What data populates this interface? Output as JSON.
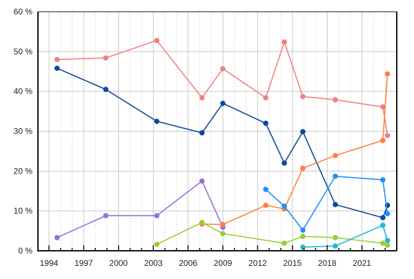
{
  "chart_data": {
    "type": "line",
    "title": "",
    "xlabel": "",
    "ylabel": "",
    "xlim": [
      1993.05,
      2024.0
    ],
    "ylim": [
      0,
      60
    ],
    "x_ticks": [
      1994,
      1997,
      2000,
      2003,
      2006,
      2009,
      2012,
      2015,
      2018,
      2021
    ],
    "x_tick_labels": [
      "1994",
      "1997",
      "2000",
      "2003",
      "2006",
      "2009",
      "2012",
      "2015",
      "2018",
      "2021"
    ],
    "y_ticks": [
      0,
      10,
      20,
      30,
      40,
      50,
      60
    ],
    "y_tick_labels": [
      "0 %",
      "10 %",
      "20 %",
      "30 %",
      "40 %",
      "50 %",
      "60 %"
    ],
    "grid": true,
    "legend": "none",
    "series": [
      {
        "name": "pink",
        "color": "#f08080",
        "points": [
          [
            1994.7,
            48.0
          ],
          [
            1998.9,
            48.4
          ],
          [
            2003.3,
            52.8
          ],
          [
            2007.2,
            38.4
          ],
          [
            2009.0,
            45.7
          ],
          [
            2012.7,
            38.4
          ],
          [
            2014.3,
            52.4
          ],
          [
            2015.9,
            38.7
          ],
          [
            2018.7,
            37.9
          ],
          [
            2022.8,
            36.1
          ],
          [
            2023.2,
            28.9
          ]
        ]
      },
      {
        "name": "dark-blue",
        "color": "#0a4a96",
        "points": [
          [
            1994.7,
            45.8
          ],
          [
            1998.9,
            40.5
          ],
          [
            2003.3,
            32.5
          ],
          [
            2007.2,
            29.6
          ],
          [
            2009.0,
            37.0
          ],
          [
            2012.7,
            32.0
          ],
          [
            2014.3,
            22.0
          ],
          [
            2015.9,
            29.9
          ],
          [
            2018.7,
            11.6
          ],
          [
            2022.8,
            8.3
          ],
          [
            2023.2,
            11.4
          ]
        ]
      },
      {
        "name": "purple",
        "color": "#9370db",
        "points": [
          [
            1994.7,
            3.3
          ],
          [
            1998.9,
            8.8
          ],
          [
            2003.3,
            8.8
          ],
          [
            2007.2,
            17.5
          ],
          [
            2009.0,
            5.9
          ]
        ]
      },
      {
        "name": "orange",
        "color": "#ff7f3f",
        "points": [
          [
            2007.2,
            6.7
          ],
          [
            2009.0,
            6.6
          ],
          [
            2012.7,
            11.4
          ],
          [
            2014.3,
            10.5
          ],
          [
            2015.9,
            20.7
          ],
          [
            2018.7,
            23.9
          ],
          [
            2022.8,
            27.7
          ],
          [
            2023.2,
            44.4
          ]
        ]
      },
      {
        "name": "green",
        "color": "#9acd32",
        "points": [
          [
            2003.3,
            1.6
          ],
          [
            2007.2,
            7.1
          ],
          [
            2009.0,
            4.3
          ],
          [
            2014.3,
            1.9
          ],
          [
            2015.9,
            3.6
          ],
          [
            2018.7,
            3.3
          ],
          [
            2022.8,
            1.9
          ],
          [
            2023.2,
            1.4
          ]
        ]
      },
      {
        "name": "blue",
        "color": "#1e90ff",
        "points": [
          [
            2012.7,
            15.4
          ],
          [
            2014.3,
            11.2
          ],
          [
            2015.9,
            5.2
          ],
          [
            2018.7,
            18.7
          ],
          [
            2022.8,
            17.8
          ],
          [
            2023.2,
            9.3
          ]
        ]
      },
      {
        "name": "cyan",
        "color": "#20b8dc",
        "points": [
          [
            2015.9,
            0.9
          ],
          [
            2018.7,
            1.2
          ],
          [
            2022.8,
            6.4
          ],
          [
            2023.2,
            2.6
          ]
        ]
      }
    ]
  }
}
